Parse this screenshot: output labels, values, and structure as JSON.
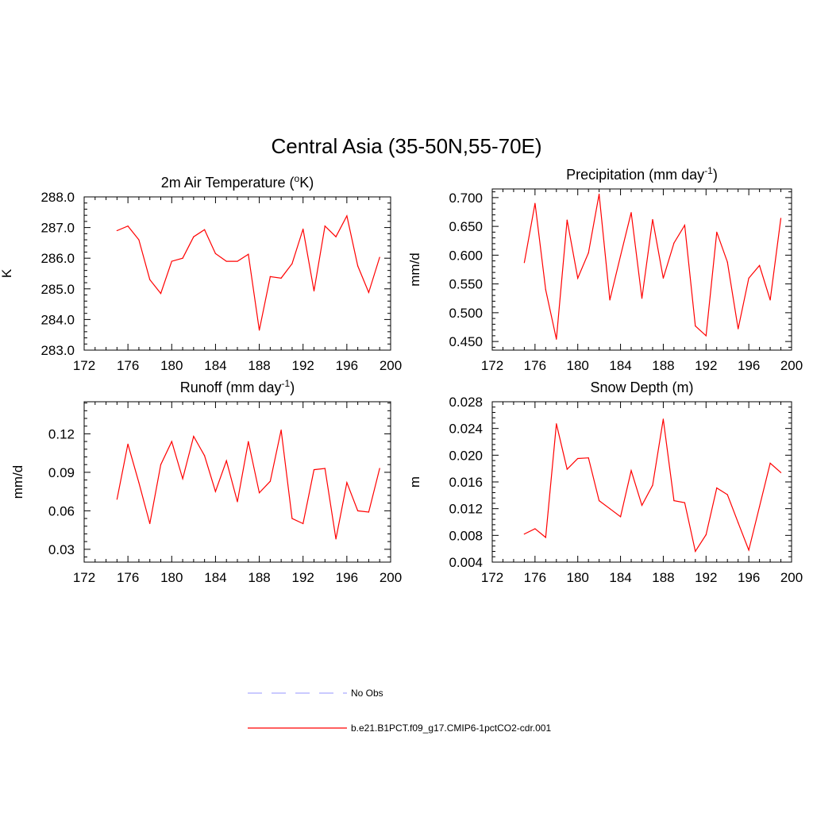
{
  "title": "Central Asia (35-50N,55-70E)",
  "colors": {
    "model_line": "#ff0000",
    "obs_line": "#aaaaff",
    "axis": "#000000"
  },
  "legend": {
    "position": "bottom-center",
    "entries": [
      {
        "label": "No Obs",
        "style": "dashed",
        "color": "#aaaaff"
      },
      {
        "label": "b.e21.B1PCT.f09_g17.CMIP6-1pctCO2-cdr.001",
        "style": "solid",
        "color": "#ff0000"
      }
    ]
  },
  "chart_data": [
    {
      "type": "line",
      "title": "2m Air Temperature (°K)",
      "title_parts": {
        "pre": "2m Air Temperature (",
        "sup": "o",
        "post": "K)"
      },
      "xlabel": "",
      "ylabel": "K",
      "xlim": [
        172,
        200
      ],
      "ylim": [
        283.0,
        288.0
      ],
      "xticks": [
        172,
        176,
        180,
        184,
        188,
        192,
        196,
        200
      ],
      "yticks": [
        283.0,
        284.0,
        285.0,
        286.0,
        287.0,
        288.0
      ],
      "ytick_labels": [
        "283.0",
        "284.0",
        "285.0",
        "286.0",
        "287.0",
        "288.0"
      ],
      "grid": false,
      "series": [
        {
          "name": "b.e21.B1PCT.f09_g17.CMIP6-1pctCO2-cdr.001",
          "x": [
            175,
            176,
            177,
            178,
            179,
            180,
            181,
            182,
            183,
            184,
            185,
            186,
            187,
            188,
            189,
            190,
            191,
            192,
            193,
            194,
            195,
            196,
            197,
            198,
            199
          ],
          "y": [
            286.9,
            287.05,
            286.6,
            285.3,
            284.85,
            285.9,
            286.0,
            286.7,
            286.93,
            286.15,
            285.9,
            285.9,
            286.13,
            283.65,
            285.4,
            285.35,
            285.82,
            286.95,
            284.93,
            287.05,
            286.7,
            287.38,
            285.75,
            284.88,
            286.03
          ]
        }
      ]
    },
    {
      "type": "line",
      "title": "Precipitation (mm day-1)",
      "title_parts": {
        "pre": "Precipitation (mm day",
        "sup": "-1",
        "post": ")"
      },
      "xlabel": "",
      "ylabel": "mm/d",
      "xlim": [
        172,
        200
      ],
      "ylim": [
        0.435,
        0.715
      ],
      "xticks": [
        172,
        176,
        180,
        184,
        188,
        192,
        196,
        200
      ],
      "yticks": [
        0.45,
        0.5,
        0.55,
        0.6,
        0.65,
        0.7
      ],
      "ytick_labels": [
        "0.450",
        "0.500",
        "0.550",
        "0.600",
        "0.650",
        "0.700"
      ],
      "grid": false,
      "series": [
        {
          "name": "b.e21.B1PCT.f09_g17.CMIP6-1pctCO2-cdr.001",
          "x": [
            175,
            176,
            177,
            178,
            179,
            180,
            181,
            182,
            183,
            184,
            185,
            186,
            187,
            188,
            189,
            190,
            191,
            192,
            193,
            194,
            195,
            196,
            197,
            198,
            199
          ],
          "y": [
            0.587,
            0.69,
            0.54,
            0.454,
            0.661,
            0.56,
            0.604,
            0.706,
            0.522,
            0.599,
            0.674,
            0.525,
            0.662,
            0.56,
            0.621,
            0.652,
            0.477,
            0.46,
            0.64,
            0.588,
            0.472,
            0.56,
            0.582,
            0.522,
            0.664
          ]
        }
      ]
    },
    {
      "type": "line",
      "title": "Runoff (mm day-1)",
      "title_parts": {
        "pre": "Runoff (mm day",
        "sup": "-1",
        "post": ")"
      },
      "xlabel": "",
      "ylabel": "mm/d",
      "xlim": [
        172,
        200
      ],
      "ylim": [
        0.02,
        0.145
      ],
      "xticks": [
        172,
        176,
        180,
        184,
        188,
        192,
        196,
        200
      ],
      "yticks": [
        0.03,
        0.06,
        0.09,
        0.12
      ],
      "ytick_labels": [
        "0.03",
        "0.06",
        "0.09",
        "0.12"
      ],
      "grid": false,
      "series": [
        {
          "name": "b.e21.B1PCT.f09_g17.CMIP6-1pctCO2-cdr.001",
          "x": [
            175,
            176,
            177,
            178,
            179,
            180,
            181,
            182,
            183,
            184,
            185,
            186,
            187,
            188,
            189,
            190,
            191,
            192,
            193,
            194,
            195,
            196,
            197,
            198,
            199
          ],
          "y": [
            0.069,
            0.112,
            0.082,
            0.05,
            0.096,
            0.114,
            0.085,
            0.118,
            0.103,
            0.075,
            0.099,
            0.067,
            0.114,
            0.074,
            0.083,
            0.123,
            0.054,
            0.05,
            0.092,
            0.093,
            0.038,
            0.082,
            0.06,
            0.059,
            0.093
          ]
        }
      ]
    },
    {
      "type": "line",
      "title": "Snow Depth (m)",
      "title_parts": {
        "pre": "Snow Depth (m)",
        "sup": "",
        "post": ""
      },
      "xlabel": "",
      "ylabel": "m",
      "xlim": [
        172,
        200
      ],
      "ylim": [
        0.004,
        0.028
      ],
      "xticks": [
        172,
        176,
        180,
        184,
        188,
        192,
        196,
        200
      ],
      "yticks": [
        0.004,
        0.008,
        0.012,
        0.016,
        0.02,
        0.024,
        0.028
      ],
      "ytick_labels": [
        "0.004",
        "0.008",
        "0.012",
        "0.016",
        "0.020",
        "0.024",
        "0.028"
      ],
      "grid": false,
      "series": [
        {
          "name": "b.e21.B1PCT.f09_g17.CMIP6-1pctCO2-cdr.001",
          "x": [
            175,
            176,
            177,
            178,
            179,
            180,
            181,
            182,
            183,
            184,
            185,
            186,
            187,
            188,
            189,
            190,
            191,
            192,
            193,
            194,
            195,
            196,
            197,
            198,
            199
          ],
          "y": [
            0.0082,
            0.009,
            0.0077,
            0.0247,
            0.0179,
            0.0195,
            0.0196,
            0.0132,
            0.012,
            0.0108,
            0.0177,
            0.0125,
            0.0155,
            0.0254,
            0.0132,
            0.0129,
            0.0056,
            0.0081,
            0.0151,
            0.0141,
            0.0099,
            0.0058,
            0.0123,
            0.0188,
            0.0174
          ]
        }
      ]
    }
  ]
}
